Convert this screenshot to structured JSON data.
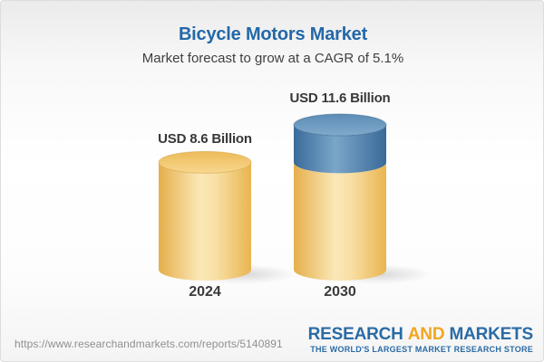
{
  "header": {
    "title": "Bicycle Motors Market",
    "subtitle": "Market forecast to grow at a CAGR of 5.1%"
  },
  "chart_data": {
    "type": "bar",
    "style": "3d-cylinder",
    "categories": [
      "2024",
      "2030"
    ],
    "values": [
      8.6,
      11.6
    ],
    "value_labels": [
      "USD 8.6 Billion",
      "USD 11.6 Billion"
    ],
    "series": [
      {
        "name": "base-market-size",
        "values": [
          8.6,
          8.6
        ],
        "color": "#F0C264"
      },
      {
        "name": "growth-increment",
        "values": [
          0,
          3.0
        ],
        "color": "#4E80AD"
      }
    ],
    "unit": "USD Billion",
    "cagr_percent": 5.1,
    "title": "Bicycle Motors Market",
    "subtitle": "Market forecast to grow at a CAGR of 5.1%",
    "ylim": [
      0,
      12.5
    ],
    "grid": false,
    "legend": "none"
  },
  "footer": {
    "url": "https://www.researchandmarkets.com/reports/5140891",
    "logo": {
      "word1": "RESEARCH",
      "word2": "AND",
      "word3": "MARKETS",
      "tagline": "THE WORLD'S LARGEST MARKET RESEARCH STORE"
    }
  },
  "colors": {
    "title_blue": "#2368A8",
    "logo_blue": "#2A6BA5",
    "logo_orange": "#F1A622",
    "cylinder_gold": "#F0C264",
    "cylinder_blue": "#4E80AD",
    "text_dark": "#383838",
    "url_gray": "#8F8F8F"
  }
}
